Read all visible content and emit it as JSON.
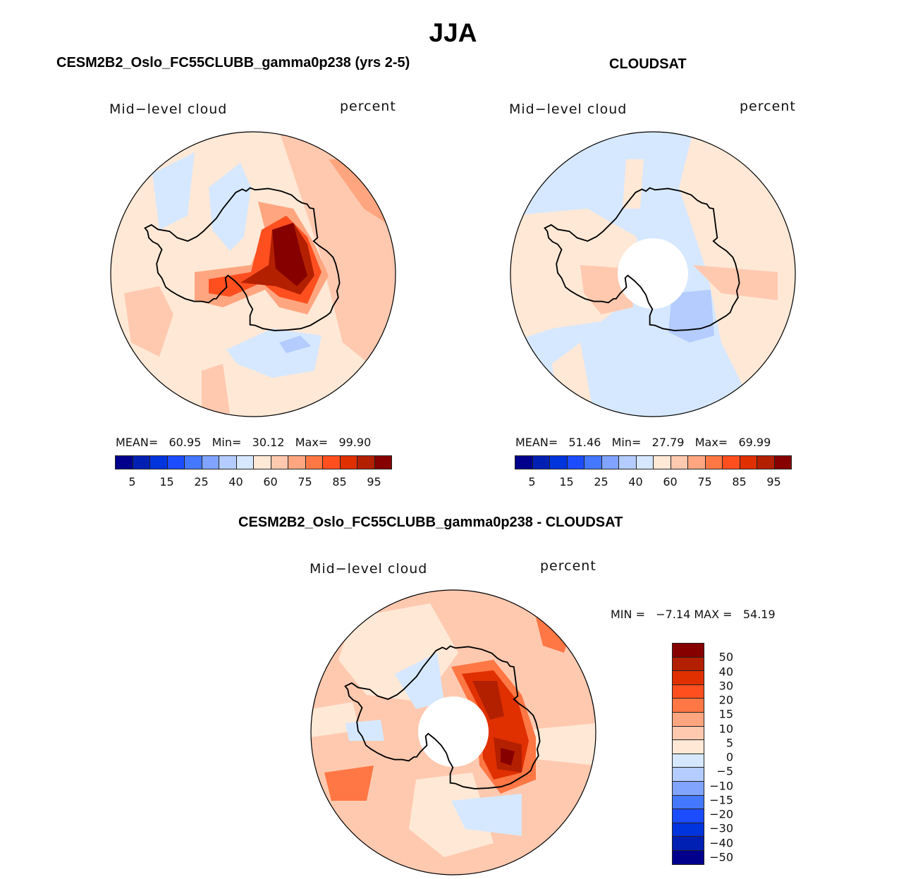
{
  "figure": {
    "season_title": "JJA"
  },
  "chart_data": [
    {
      "type": "heatmap",
      "projection": "south-polar-stereographic",
      "title": "CESM2B2_Oslo_FC55CLUBB_gamma0p238 (yrs 2-5)",
      "left_label": "Mid−level cloud",
      "right_label": "percent",
      "stats": {
        "mean_label": "MEAN=",
        "mean": "60.95",
        "min_label": "Min=",
        "min": "30.12",
        "max_label": "Max=",
        "max": "99.90"
      },
      "colorbar": {
        "orientation": "horizontal",
        "levels": [
          5,
          10,
          15,
          20,
          25,
          30,
          40,
          50,
          60,
          70,
          75,
          80,
          85,
          90,
          95
        ],
        "tick_labels": [
          "5",
          "15",
          "25",
          "40",
          "60",
          "75",
          "85",
          "95"
        ],
        "colors": [
          "#00008C",
          "#0020B4",
          "#0034DC",
          "#1C4CFF",
          "#4478FF",
          "#80A4FF",
          "#B4CCFF",
          "#D6E8FF",
          "#FFE8D6",
          "#FFC9B0",
          "#FFA680",
          "#FF7744",
          "#FF4F1F",
          "#E03000",
          "#B32000",
          "#860000"
        ]
      },
      "features": [
        "center-high-over-east-antarctica",
        "blue-weddell-sea",
        "blue-ross-sea"
      ]
    },
    {
      "type": "heatmap",
      "projection": "south-polar-stereographic",
      "title": "CLOUDSAT",
      "left_label": "Mid−level cloud",
      "right_label": "percent",
      "stats": {
        "mean_label": "MEAN=",
        "mean": "51.46",
        "min_label": "Min=",
        "min": "27.79",
        "max_label": "Max=",
        "max": "69.99"
      },
      "colorbar": {
        "orientation": "horizontal",
        "levels": [
          5,
          10,
          15,
          20,
          25,
          30,
          40,
          50,
          60,
          70,
          75,
          80,
          85,
          90,
          95
        ],
        "tick_labels": [
          "5",
          "15",
          "25",
          "40",
          "60",
          "75",
          "85",
          "95"
        ],
        "colors": [
          "#00008C",
          "#0020B4",
          "#0034DC",
          "#1C4CFF",
          "#4478FF",
          "#80A4FF",
          "#B4CCFF",
          "#D6E8FF",
          "#FFE8D6",
          "#FFC9B0",
          "#FFA680",
          "#FF7744",
          "#FF4F1F",
          "#E03000",
          "#B32000",
          "#860000"
        ]
      },
      "missing_polar_cap": true
    },
    {
      "type": "heatmap",
      "projection": "south-polar-stereographic",
      "title": "CESM2B2_Oslo_FC55CLUBB_gamma0p238 - CLOUDSAT",
      "left_label": "Mid−level cloud",
      "right_label": "percent",
      "stats": {
        "min_label": "MIN =",
        "min": "−7.14",
        "max_label": "MAX =",
        "max": "54.19"
      },
      "colorbar": {
        "orientation": "vertical",
        "levels": [
          50,
          40,
          30,
          20,
          15,
          10,
          5,
          0,
          -5,
          -10,
          -15,
          -20,
          -30,
          -40,
          -50
        ],
        "tick_labels": [
          "50",
          "40",
          "30",
          "20",
          "15",
          "10",
          "5",
          "0",
          "−5",
          "−10",
          "−15",
          "−20",
          "−30",
          "−40",
          "−50"
        ],
        "colors": [
          "#860000",
          "#B32000",
          "#E03000",
          "#FF4F1F",
          "#FF7744",
          "#FFA680",
          "#FFC9B0",
          "#FFE8D6",
          "#D6E8FF",
          "#B4CCFF",
          "#80A4FF",
          "#4478FF",
          "#1C4CFF",
          "#0034DC",
          "#0020B4",
          "#00008C"
        ]
      },
      "missing_polar_cap": true
    }
  ]
}
